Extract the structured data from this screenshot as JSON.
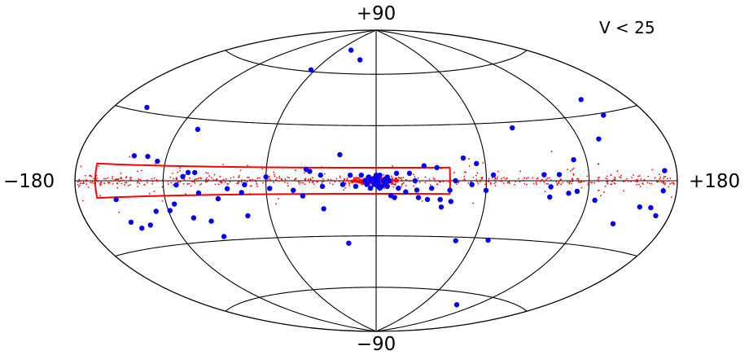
{
  "chart_data": {
    "type": "scatter",
    "projection": "hammer-aitoff",
    "title": "",
    "annotation": "V < 25",
    "axis_labels": {
      "top": "+90",
      "bottom": "−90",
      "left": "−180",
      "right": "+180"
    },
    "xlim": [
      -180,
      180
    ],
    "ylim": [
      -90,
      90
    ],
    "grid": {
      "shown": true,
      "longitude_lines": [
        -120,
        -60,
        0,
        60,
        120
      ],
      "latitude_lines": [
        -60,
        -30,
        0,
        30,
        60
      ]
    },
    "colors": {
      "red_series": "#ff0000",
      "blue_series": "#0000ff",
      "grid": "#000000"
    },
    "regions": [
      {
        "type": "box",
        "color": "#ff0000",
        "l_range": [
          -165,
          40
        ],
        "b_range": [
          -7,
          7
        ]
      }
    ],
    "series": [
      {
        "marker": "small dot",
        "color": "#ff0000",
        "count_approx": 1100,
        "distribution": "concentrated along b = 0, strongest near l = 0, sparse elsewhere"
      },
      {
        "marker": "large dot",
        "color": "#0000ff",
        "points": [
          [
            -155,
            32
          ],
          [
            -152,
            -8
          ],
          [
            -148,
            -18
          ],
          [
            -143,
            -21
          ],
          [
            -141,
            11
          ],
          [
            -136,
            -20
          ],
          [
            -132,
            11
          ],
          [
            -128,
            -14
          ],
          [
            -125,
            9
          ],
          [
            -119,
            -14
          ],
          [
            -115,
            -11
          ],
          [
            -112,
            -2
          ],
          [
            -108,
            25
          ],
          [
            -108,
            2
          ],
          [
            -106,
            -18
          ],
          [
            -105,
            4
          ],
          [
            -101,
            4
          ],
          [
            -99,
            -6
          ],
          [
            -96,
            -20
          ],
          [
            -93,
            -28
          ],
          [
            -88,
            -9
          ],
          [
            -82,
            -4
          ],
          [
            -74,
            -6
          ],
          [
            -73,
            -18
          ],
          [
            -72,
            -2
          ],
          [
            -60,
            2
          ],
          [
            -58,
            -4
          ],
          [
            -45,
            -5
          ],
          [
            -40,
            -8
          ],
          [
            -38,
            6
          ],
          [
            -36,
            5
          ],
          [
            -30,
            3
          ],
          [
            -29,
            -3
          ],
          [
            -29,
            -15
          ],
          [
            -20,
            14
          ],
          [
            -18,
            -2
          ],
          [
            -17,
            -34
          ],
          [
            -14,
            3
          ],
          [
            -11,
            -3
          ],
          [
            -8,
            3
          ],
          [
            -6,
            0
          ],
          [
            -5,
            -2
          ],
          [
            -4,
            2
          ],
          [
            -3,
            -4
          ],
          [
            -3,
            0
          ],
          [
            -2,
            1
          ],
          [
            -1,
            -2
          ],
          [
            0,
            0
          ],
          [
            0,
            2
          ],
          [
            0,
            3
          ],
          [
            1,
            -3
          ],
          [
            1,
            -1
          ],
          [
            1,
            1
          ],
          [
            2,
            3
          ],
          [
            2,
            -4
          ],
          [
            3,
            -3
          ],
          [
            4,
            0
          ],
          [
            5,
            1
          ],
          [
            5,
            -2
          ],
          [
            6,
            -3
          ],
          [
            6,
            2
          ],
          [
            7,
            0
          ],
          [
            8,
            -8
          ],
          [
            10,
            -9
          ],
          [
            11,
            4
          ],
          [
            12,
            -4
          ],
          [
            16,
            -6
          ],
          [
            18,
            4
          ],
          [
            21,
            0
          ],
          [
            22,
            -5
          ],
          [
            23,
            -9
          ],
          [
            26,
            8
          ],
          [
            28,
            -10
          ],
          [
            30,
            -4
          ],
          [
            33,
            7
          ],
          [
            35,
            -10
          ],
          [
            36,
            -14
          ],
          [
            40,
            -5
          ],
          [
            41,
            -11
          ],
          [
            43,
            0
          ],
          [
            48,
            12
          ],
          [
            49,
            -32
          ],
          [
            52,
            -2
          ],
          [
            55,
            9
          ],
          [
            60,
            -5
          ],
          [
            64,
            3
          ],
          [
            69,
            -31
          ],
          [
            82,
            27
          ],
          [
            93,
            3
          ],
          [
            97,
            -8
          ],
          [
            97,
            -3
          ],
          [
            100,
            -67
          ],
          [
            102,
            3
          ],
          [
            108,
            -6
          ],
          [
            112,
            10
          ],
          [
            113,
            -5
          ],
          [
            125,
            -9
          ],
          [
            133,
            19
          ],
          [
            143,
            -19
          ],
          [
            144,
            37
          ],
          [
            148,
            29
          ],
          [
            156,
            -11
          ],
          [
            164,
            -11
          ],
          [
            170,
            -14
          ],
          [
            170,
            -4
          ],
          [
            171,
            4
          ],
          [
            -64,
            61
          ],
          [
            -20,
            69
          ],
          [
            -42,
            75
          ]
        ]
      }
    ]
  }
}
